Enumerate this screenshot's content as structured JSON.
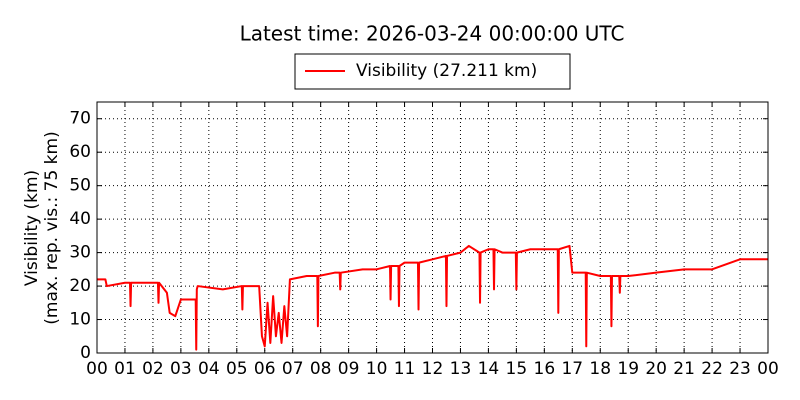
{
  "chart_data": {
    "type": "line",
    "title": "Latest time: 2026-03-24 00:00:00 UTC",
    "ylabel": [
      "Visibility (km)",
      "(max. rep. vis.: 75 km)"
    ],
    "x": [
      0,
      0.3,
      0.35,
      1.0,
      1.18,
      1.2,
      1.22,
      2.0,
      2.18,
      2.2,
      2.22,
      2.5,
      2.6,
      2.8,
      3.0,
      3.2,
      3.5,
      3.53,
      3.55,
      3.57,
      3.6,
      4.5,
      5.18,
      5.2,
      5.22,
      5.8,
      5.9,
      6.0,
      6.1,
      6.2,
      6.3,
      6.4,
      6.5,
      6.6,
      6.7,
      6.8,
      6.9,
      7.5,
      7.88,
      7.9,
      7.92,
      8.5,
      8.68,
      8.7,
      8.72,
      9.5,
      10.0,
      10.48,
      10.5,
      10.52,
      10.78,
      10.8,
      10.82,
      11.0,
      11.48,
      11.5,
      11.52,
      12.0,
      12.48,
      12.5,
      12.52,
      13.0,
      13.3,
      13.68,
      13.7,
      13.72,
      14.0,
      14.18,
      14.2,
      14.22,
      14.5,
      14.98,
      15.0,
      15.02,
      15.5,
      16.0,
      16.48,
      16.5,
      16.52,
      16.9,
      17.0,
      17.48,
      17.5,
      17.52,
      18.0,
      18.38,
      18.4,
      18.42,
      18.68,
      18.7,
      18.72,
      19.0,
      20,
      21,
      22,
      23,
      24
    ],
    "series": [
      {
        "name": "Visibility (27.211 km)",
        "color": "#ff0000",
        "values": [
          22,
          22,
          20,
          21,
          21,
          14,
          21,
          21,
          21,
          15,
          21,
          18,
          12,
          11,
          16,
          16,
          16,
          16,
          1,
          19,
          20,
          19,
          20,
          13,
          20,
          20,
          5,
          2,
          15,
          3,
          17,
          5,
          12,
          3,
          14,
          5,
          22,
          23,
          23,
          8,
          23,
          24,
          24,
          19,
          24,
          25,
          25,
          26,
          16,
          26,
          26,
          14,
          26,
          27,
          27,
          13,
          27,
          28,
          29,
          14,
          29,
          30,
          32,
          30,
          15,
          30,
          31,
          31,
          19,
          31,
          30,
          30,
          19,
          30,
          31,
          31,
          31,
          12,
          31,
          32,
          24,
          24,
          2,
          24,
          23,
          23,
          8,
          23,
          23,
          18,
          23,
          23,
          24,
          25,
          25,
          28,
          28
        ]
      }
    ],
    "xlim": [
      0,
      24
    ],
    "xticks": [
      {
        "value": 0,
        "label": "00"
      },
      {
        "value": 1,
        "label": "01"
      },
      {
        "value": 2,
        "label": "02"
      },
      {
        "value": 3,
        "label": "03"
      },
      {
        "value": 4,
        "label": "04"
      },
      {
        "value": 5,
        "label": "05"
      },
      {
        "value": 6,
        "label": "06"
      },
      {
        "value": 7,
        "label": "07"
      },
      {
        "value": 8,
        "label": "08"
      },
      {
        "value": 9,
        "label": "09"
      },
      {
        "value": 10,
        "label": "10"
      },
      {
        "value": 11,
        "label": "11"
      },
      {
        "value": 12,
        "label": "12"
      },
      {
        "value": 13,
        "label": "13"
      },
      {
        "value": 14,
        "label": "14"
      },
      {
        "value": 15,
        "label": "15"
      },
      {
        "value": 16,
        "label": "16"
      },
      {
        "value": 17,
        "label": "17"
      },
      {
        "value": 18,
        "label": "18"
      },
      {
        "value": 19,
        "label": "19"
      },
      {
        "value": 20,
        "label": "20"
      },
      {
        "value": 21,
        "label": "21"
      },
      {
        "value": 22,
        "label": "22"
      },
      {
        "value": 23,
        "label": "23"
      },
      {
        "value": 24,
        "label": "00"
      }
    ],
    "ylim": [
      0,
      75
    ],
    "yticks": [
      0,
      10,
      20,
      30,
      40,
      50,
      60,
      70
    ],
    "grid": true
  }
}
